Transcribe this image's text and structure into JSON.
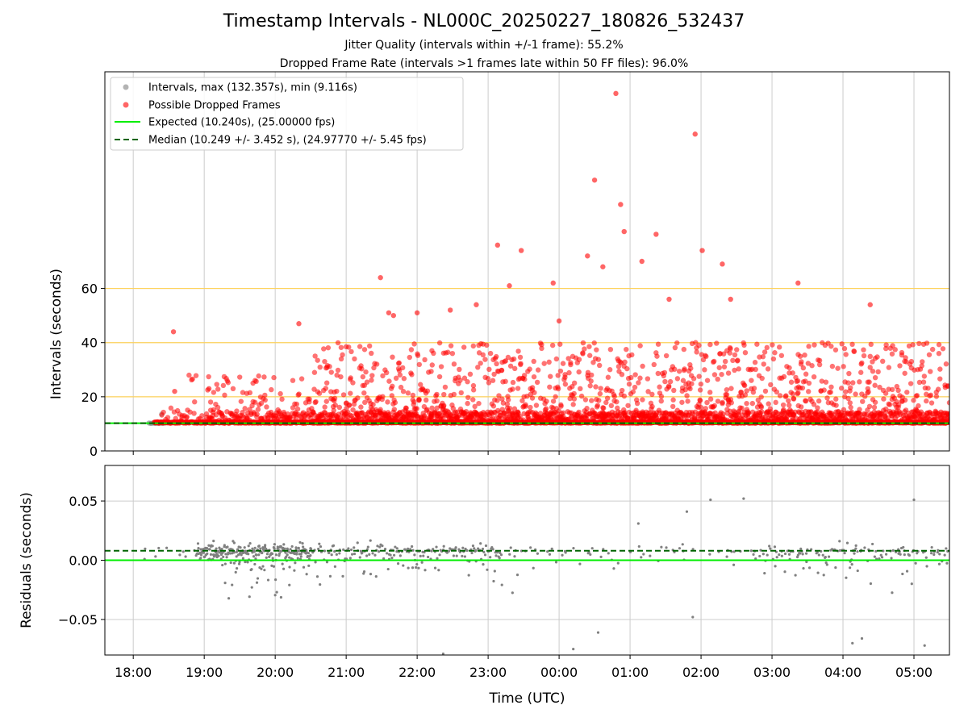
{
  "title": "Timestamp Intervals - NL000C_20250227_180826_532437",
  "subtitle_jitter": "Jitter Quality (intervals within +/-1 frame): 55.2%",
  "subtitle_dropped": "Dropped Frame Rate (intervals >1 frames late within 50 FF files): 96.0%",
  "colors": {
    "intervals": "#808080",
    "dropped": "#ff0000",
    "expected": "#00ee00",
    "median": "#006400",
    "threshold": "#ffd35c",
    "grid": "#cccccc"
  },
  "chart_data": [
    {
      "type": "scatter",
      "id": "intervals",
      "ylabel": "Intervals (seconds)",
      "xlabel": "",
      "xlim_hours": [
        17.6,
        29.5
      ],
      "ylim": [
        0,
        140
      ],
      "yticks": [
        0,
        20,
        40,
        60
      ],
      "xticks": [
        "18:00",
        "19:00",
        "20:00",
        "21:00",
        "22:00",
        "23:00",
        "00:00",
        "01:00",
        "02:00",
        "03:00",
        "04:00",
        "05:00"
      ],
      "grid": true,
      "legend_position": "top-left",
      "threshold_lines": [
        20,
        40,
        60
      ],
      "legend": [
        "Intervals, max (132.357s), min (9.116s)",
        "Possible Dropped Frames",
        "Expected (10.240s), (25.00000 fps)",
        "Median (10.249 +/- 3.452 s), (24.97770 +/- 5.45 fps)"
      ],
      "expected": 10.24,
      "median": 10.249,
      "max": 132.357,
      "min": 9.116,
      "dropped_outliers": [
        {
          "t": "18:34",
          "y": 44
        },
        {
          "t": "18:35",
          "y": 22
        },
        {
          "t": "19:04",
          "y": 23
        },
        {
          "t": "20:20",
          "y": 47
        },
        {
          "t": "21:29",
          "y": 64
        },
        {
          "t": "21:36",
          "y": 51
        },
        {
          "t": "21:40",
          "y": 50
        },
        {
          "t": "22:00",
          "y": 51
        },
        {
          "t": "22:28",
          "y": 52
        },
        {
          "t": "22:50",
          "y": 54
        },
        {
          "t": "23:08",
          "y": 76
        },
        {
          "t": "23:18",
          "y": 61
        },
        {
          "t": "23:28",
          "y": 74
        },
        {
          "t": "23:55",
          "y": 62
        },
        {
          "t": "00:00",
          "y": 48
        },
        {
          "t": "00:24",
          "y": 72
        },
        {
          "t": "00:30",
          "y": 100
        },
        {
          "t": "00:37",
          "y": 68
        },
        {
          "t": "00:48",
          "y": 132
        },
        {
          "t": "00:52",
          "y": 91
        },
        {
          "t": "00:55",
          "y": 81
        },
        {
          "t": "01:10",
          "y": 70
        },
        {
          "t": "01:22",
          "y": 80
        },
        {
          "t": "01:33",
          "y": 56
        },
        {
          "t": "01:55",
          "y": 117
        },
        {
          "t": "02:01",
          "y": 74
        },
        {
          "t": "02:18",
          "y": 69
        },
        {
          "t": "02:25",
          "y": 56
        },
        {
          "t": "03:22",
          "y": 62
        },
        {
          "t": "04:23",
          "y": 54
        }
      ]
    },
    {
      "type": "scatter",
      "id": "residuals",
      "ylabel": "Residuals (seconds)",
      "xlabel": "Time (UTC)",
      "xlim_hours": [
        17.6,
        29.5
      ],
      "ylim": [
        -0.08,
        0.08
      ],
      "yticks": [
        -0.05,
        0.0,
        0.05
      ],
      "ytick_labels": [
        "−0.05",
        "0.00",
        "0.05"
      ],
      "xticks": [
        "18:00",
        "19:00",
        "20:00",
        "21:00",
        "22:00",
        "23:00",
        "00:00",
        "01:00",
        "02:00",
        "03:00",
        "04:00",
        "05:00"
      ],
      "grid": true,
      "expected_residual": 0.0,
      "median_residual": 0.008,
      "outliers": [
        {
          "t": "22:22",
          "y": -0.079
        },
        {
          "t": "00:12",
          "y": -0.075
        },
        {
          "t": "00:33",
          "y": -0.061
        },
        {
          "t": "01:07",
          "y": 0.031
        },
        {
          "t": "01:48",
          "y": 0.041
        },
        {
          "t": "01:53",
          "y": -0.048
        },
        {
          "t": "02:08",
          "y": 0.051
        },
        {
          "t": "02:36",
          "y": 0.052
        },
        {
          "t": "04:08",
          "y": -0.07
        },
        {
          "t": "04:16",
          "y": -0.066
        },
        {
          "t": "05:00",
          "y": 0.051
        },
        {
          "t": "05:09",
          "y": -0.072
        }
      ]
    }
  ]
}
